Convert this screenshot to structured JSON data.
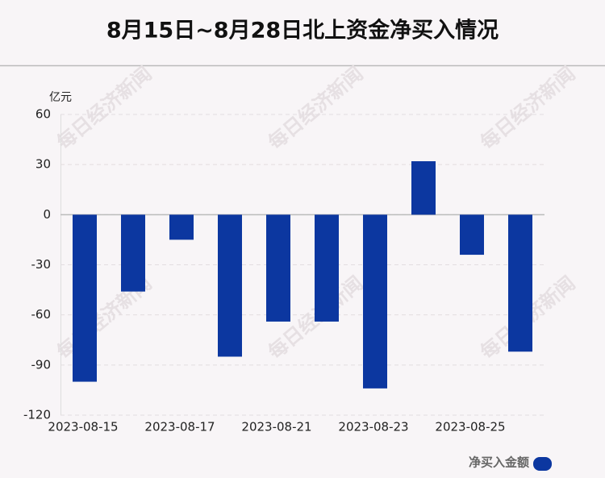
{
  "chart_data": {
    "type": "bar",
    "title": "8月15日~8月28日北上资金净买入情况",
    "y_unit": "亿元",
    "categories": [
      "2023-08-15",
      null,
      "2023-08-17",
      null,
      "2023-08-21",
      null,
      "2023-08-23",
      null,
      "2023-08-25",
      null
    ],
    "series": [
      {
        "name": "净买入金额",
        "color": "#0c37a0",
        "values": [
          -100,
          -46,
          -15,
          -85,
          -64,
          -64,
          -104,
          32,
          -24,
          -82
        ]
      }
    ],
    "ylim": [
      -120,
      60
    ],
    "yticks": [
      -120,
      -90,
      -60,
      -30,
      0,
      30,
      60
    ],
    "grid": true,
    "watermark": "每日经济新闻"
  }
}
